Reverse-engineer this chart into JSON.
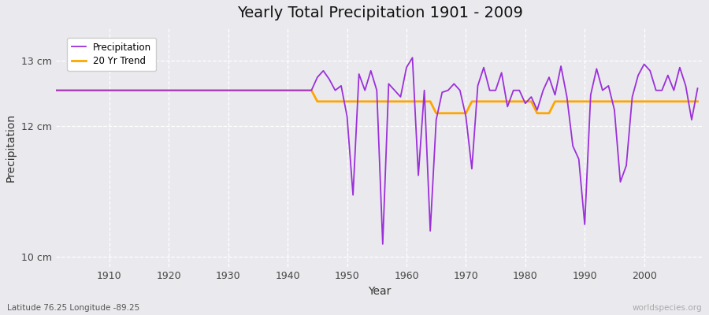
{
  "title": "Yearly Total Precipitation 1901 - 2009",
  "xlabel": "Year",
  "ylabel": "Precipitation",
  "subtitle_left": "Latitude 76.25 Longitude -89.25",
  "subtitle_right": "worldspecies.org",
  "ylim": [
    9.85,
    13.5
  ],
  "yticks": [
    10,
    12,
    13
  ],
  "ytick_labels": [
    "10 cm",
    "12 cm",
    "13 cm"
  ],
  "xlim": [
    1901,
    2010
  ],
  "xticks": [
    1910,
    1920,
    1930,
    1940,
    1950,
    1960,
    1970,
    1980,
    1990,
    2000
  ],
  "precip_color": "#9B30D9",
  "trend_color": "#FFA500",
  "background_color": "#EAEAEE",
  "years": [
    1901,
    1902,
    1903,
    1904,
    1905,
    1906,
    1907,
    1908,
    1909,
    1910,
    1911,
    1912,
    1913,
    1914,
    1915,
    1916,
    1917,
    1918,
    1919,
    1920,
    1921,
    1922,
    1923,
    1924,
    1925,
    1926,
    1927,
    1928,
    1929,
    1930,
    1931,
    1932,
    1933,
    1934,
    1935,
    1936,
    1937,
    1938,
    1939,
    1940,
    1941,
    1942,
    1943,
    1944,
    1945,
    1946,
    1947,
    1948,
    1949,
    1950,
    1951,
    1952,
    1953,
    1954,
    1955,
    1956,
    1957,
    1958,
    1959,
    1960,
    1961,
    1962,
    1963,
    1964,
    1965,
    1966,
    1967,
    1968,
    1969,
    1970,
    1971,
    1972,
    1973,
    1974,
    1975,
    1976,
    1977,
    1978,
    1979,
    1980,
    1981,
    1982,
    1983,
    1984,
    1985,
    1986,
    1987,
    1988,
    1989,
    1990,
    1991,
    1992,
    1993,
    1994,
    1995,
    1996,
    1997,
    1998,
    1999,
    2000,
    2001,
    2002,
    2003,
    2004,
    2005,
    2006,
    2007,
    2008,
    2009
  ],
  "precip": [
    12.55,
    12.55,
    12.55,
    12.55,
    12.55,
    12.55,
    12.55,
    12.55,
    12.55,
    12.55,
    12.55,
    12.55,
    12.55,
    12.55,
    12.55,
    12.55,
    12.55,
    12.55,
    12.55,
    12.55,
    12.55,
    12.55,
    12.55,
    12.55,
    12.55,
    12.55,
    12.55,
    12.55,
    12.55,
    12.55,
    12.55,
    12.55,
    12.55,
    12.55,
    12.55,
    12.55,
    12.55,
    12.55,
    12.55,
    12.55,
    12.55,
    12.55,
    12.55,
    12.55,
    12.75,
    12.85,
    12.72,
    12.55,
    12.62,
    12.15,
    10.95,
    12.8,
    12.55,
    12.85,
    12.55,
    10.2,
    12.65,
    12.55,
    12.45,
    12.9,
    13.05,
    11.25,
    12.55,
    10.4,
    12.1,
    12.52,
    12.55,
    12.65,
    12.55,
    12.15,
    11.35,
    12.62,
    12.9,
    12.55,
    12.55,
    12.82,
    12.3,
    12.55,
    12.55,
    12.35,
    12.45,
    12.25,
    12.55,
    12.75,
    12.48,
    12.92,
    12.45,
    11.7,
    11.5,
    10.5,
    12.48,
    12.88,
    12.55,
    12.62,
    12.25,
    11.15,
    11.4,
    12.45,
    12.78,
    12.95,
    12.85,
    12.55,
    12.55,
    12.78,
    12.55,
    12.9,
    12.62,
    12.1,
    12.58
  ],
  "trend": [
    12.55,
    12.55,
    12.55,
    12.55,
    12.55,
    12.55,
    12.55,
    12.55,
    12.55,
    12.55,
    12.55,
    12.55,
    12.55,
    12.55,
    12.55,
    12.55,
    12.55,
    12.55,
    12.55,
    12.55,
    12.55,
    12.55,
    12.55,
    12.55,
    12.55,
    12.55,
    12.55,
    12.55,
    12.55,
    12.55,
    12.55,
    12.55,
    12.55,
    12.55,
    12.55,
    12.55,
    12.55,
    12.55,
    12.55,
    12.55,
    12.55,
    12.55,
    12.55,
    12.55,
    12.38,
    12.38,
    12.38,
    12.38,
    12.38,
    12.38,
    12.38,
    12.38,
    12.38,
    12.38,
    12.38,
    12.38,
    12.38,
    12.38,
    12.38,
    12.38,
    12.38,
    12.38,
    12.38,
    12.38,
    12.2,
    12.2,
    12.2,
    12.2,
    12.2,
    12.2,
    12.38,
    12.38,
    12.38,
    12.38,
    12.38,
    12.38,
    12.38,
    12.38,
    12.38,
    12.38,
    12.38,
    12.2,
    12.2,
    12.2,
    12.38,
    12.38,
    12.38,
    12.38,
    12.38,
    12.38,
    12.38,
    12.38,
    12.38,
    12.38,
    12.38,
    12.38,
    12.38,
    12.38,
    12.38,
    12.38,
    12.38,
    12.38,
    12.38,
    12.38,
    12.38,
    12.38,
    12.38,
    12.38,
    12.38
  ]
}
